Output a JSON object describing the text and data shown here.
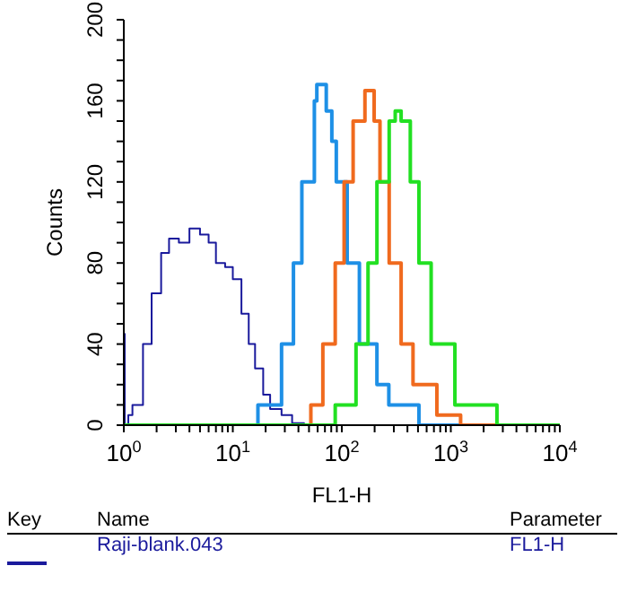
{
  "chart_data": {
    "type": "step",
    "xlabel": "FL1-H",
    "ylabel": "Counts",
    "log": "x",
    "xlim": [
      1,
      10000
    ],
    "xticks": [
      {
        "value": 1,
        "label": "10$^{0}$"
      },
      {
        "value": 2,
        "label": null
      },
      {
        "value": 3,
        "label": null
      },
      {
        "value": 4,
        "label": null
      },
      {
        "value": 5,
        "label": null
      },
      {
        "value": 6,
        "label": null
      },
      {
        "value": 7,
        "label": null
      },
      {
        "value": 8,
        "label": null
      },
      {
        "value": 9,
        "label": null
      },
      {
        "value": 10,
        "label": "10$^{1}$"
      },
      {
        "value": 20,
        "label": null
      },
      {
        "value": 30,
        "label": null
      },
      {
        "value": 40,
        "label": null
      },
      {
        "value": 50,
        "label": null
      },
      {
        "value": 60,
        "label": null
      },
      {
        "value": 70,
        "label": null
      },
      {
        "value": 80,
        "label": null
      },
      {
        "value": 90,
        "label": null
      },
      {
        "value": 100,
        "label": "10$^{2}$"
      },
      {
        "value": 200,
        "label": null
      },
      {
        "value": 300,
        "label": null
      },
      {
        "value": 400,
        "label": null
      },
      {
        "value": 500,
        "label": null
      },
      {
        "value": 600,
        "label": null
      },
      {
        "value": 700,
        "label": null
      },
      {
        "value": 800,
        "label": null
      },
      {
        "value": 900,
        "label": null
      },
      {
        "value": 1000,
        "label": "10$^{3}$"
      },
      {
        "value": 2000,
        "label": null
      },
      {
        "value": 3000,
        "label": null
      },
      {
        "value": 4000,
        "label": null
      },
      {
        "value": 5000,
        "label": null
      },
      {
        "value": 6000,
        "label": null
      },
      {
        "value": 7000,
        "label": null
      },
      {
        "value": 8000,
        "label": null
      },
      {
        "value": 9000,
        "label": null
      },
      {
        "value": 10000,
        "label": "10$^{4}$"
      }
    ],
    "ylim": [
      0,
      200
    ],
    "yticks": [
      0,
      {
        "value": 10,
        "label": null
      },
      {
        "value": 20,
        "label": null
      },
      {
        "value": 30,
        "label": null
      },
      40,
      {
        "value": 50,
        "label": null
      },
      {
        "value": 60,
        "label": null
      },
      {
        "value": 70,
        "label": null
      },
      80,
      {
        "value": 90,
        "label": null
      },
      {
        "value": 100,
        "label": null
      },
      {
        "value": 110,
        "label": null
      },
      120,
      {
        "value": 130,
        "label": null
      },
      {
        "value": 140,
        "label": null
      },
      {
        "value": 150,
        "label": null
      },
      160,
      {
        "value": 170,
        "label": null
      },
      {
        "value": 180,
        "label": null
      },
      {
        "value": 190,
        "label": null
      },
      200
    ],
    "grid": false,
    "legend": "bottom",
    "annotations": [
      "Key",
      "Name",
      "Parameter",
      "FL1-H"
    ],
    "series": [
      {
        "name": "Raji-blank.043",
        "color": "#1a1a9c",
        "x": [
          1,
          1.02,
          1.1,
          1.2,
          1.5,
          1.8,
          2.2,
          2.6,
          3.2,
          4,
          5,
          6,
          7,
          8.5,
          10,
          12,
          14,
          16,
          19,
          22,
          28,
          35,
          45,
          10000
        ],
        "values": [
          45,
          0,
          5,
          10,
          40,
          65,
          85,
          92,
          90,
          97,
          94,
          90,
          80,
          78,
          72,
          55,
          40,
          28,
          15,
          8,
          5,
          1,
          0,
          0
        ]
      },
      {
        "color": "#1e90e6",
        "x": [
          1,
          8,
          17,
          28,
          36,
          43,
          56,
          59,
          72,
          81,
          89,
          112,
          145,
          210,
          270,
          510,
          10000
        ],
        "values": [
          0,
          0,
          10,
          40,
          80,
          120,
          160,
          168,
          155,
          140,
          120,
          80,
          40,
          20,
          10,
          0,
          0
        ]
      },
      {
        "color": "#f06a1e",
        "x": [
          1,
          28,
          52,
          67,
          87,
          105,
          127,
          163,
          198,
          224,
          272,
          350,
          450,
          745,
          1230,
          10000
        ],
        "values": [
          0,
          0,
          10,
          40,
          80,
          120,
          150,
          165,
          150,
          120,
          80,
          40,
          20,
          5,
          0,
          0
        ]
      },
      {
        "color": "#22e022",
        "x": [
          1,
          40,
          87,
          135,
          174,
          210,
          272,
          309,
          350,
          425,
          510,
          660,
          1090,
          2650,
          10000
        ],
        "values": [
          0,
          0,
          10,
          40,
          80,
          120,
          150,
          155,
          150,
          120,
          80,
          40,
          10,
          0,
          0
        ]
      }
    ]
  }
}
